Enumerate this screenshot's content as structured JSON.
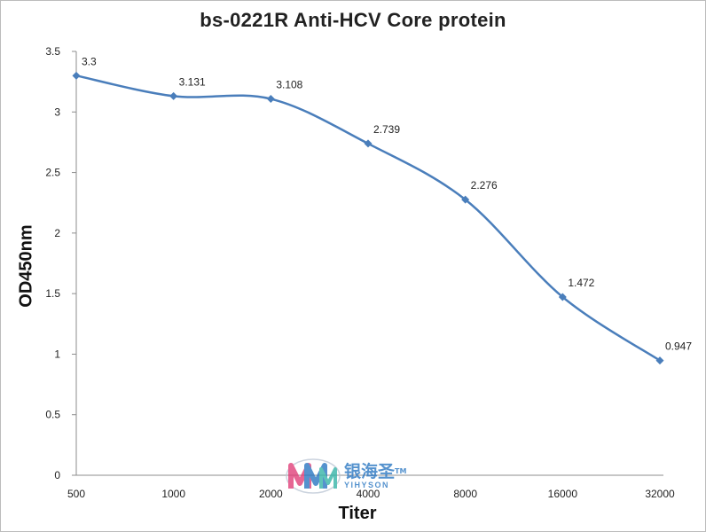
{
  "chart_data": {
    "type": "line",
    "title": "bs-0221R Anti-HCV Core protein",
    "xlabel": "Titer",
    "ylabel": "OD450nm",
    "categories": [
      "500",
      "1000",
      "2000",
      "4000",
      "8000",
      "16000",
      "32000"
    ],
    "values": [
      3.3,
      3.131,
      3.108,
      2.739,
      2.276,
      1.472,
      0.947
    ],
    "data_labels": [
      "3.3",
      "3.131",
      "3.108",
      "2.739",
      "2.276",
      "1.472",
      "0.947"
    ],
    "y_ticks": [
      "0",
      "0.5",
      "1",
      "1.5",
      "2",
      "2.5",
      "3",
      "3.5"
    ],
    "ylim": [
      0,
      3.5
    ],
    "grid": false,
    "legend": "none",
    "line_color": "#4a7ebb",
    "smooth": true
  },
  "watermark": {
    "text_cn": "银海圣",
    "tm": "TM",
    "text_en": "YIHYSON",
    "colors": [
      "#e0407a",
      "#2b78c2",
      "#36b5a8"
    ]
  }
}
